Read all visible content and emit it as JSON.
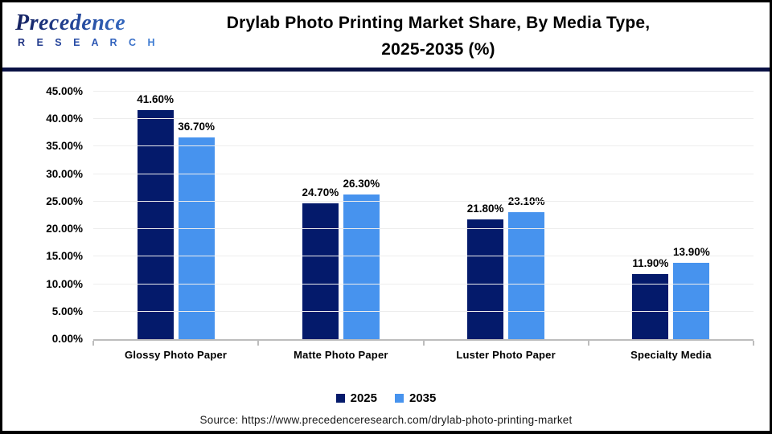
{
  "logo": {
    "name": "Precedence",
    "sub": "R E S E A R C H"
  },
  "title": {
    "line1": "Drylab Photo Printing Market Share, By Media Type,",
    "line2": "2025-2035 (%)"
  },
  "source": "Source: https://www.precedenceresearch.com/drylab-photo-printing-market",
  "colors": {
    "bar_2025": "#041A6B",
    "bar_2035": "#4793EE",
    "header_divider": "#0A1144",
    "gridline": "#EDEDED",
    "axis_line": "#BDBDBD",
    "title_text": "#000000"
  },
  "chart_data": {
    "type": "bar",
    "title": "Drylab Photo Printing Market Share, By Media Type, 2025-2035 (%)",
    "categories": [
      "Glossy Photo Paper",
      "Matte Photo Paper",
      "Luster Photo Paper",
      "Specialty Media"
    ],
    "series": [
      {
        "name": "2025",
        "color": "#041A6B",
        "values": [
          41.6,
          24.7,
          21.8,
          11.9
        ],
        "labels": [
          "41.60%",
          "24.70%",
          "21.80%",
          "11.90%"
        ]
      },
      {
        "name": "2035",
        "color": "#4793EE",
        "values": [
          36.7,
          26.3,
          23.1,
          13.9
        ],
        "labels": [
          "36.70%",
          "26.30%",
          "23.10%",
          "13.90%"
        ]
      }
    ],
    "xlabel": "",
    "ylabel": "",
    "ylim": [
      0,
      45
    ],
    "ytick_step": 5,
    "ytick_suffix": "%",
    "ytick_decimals": 2,
    "grid": true,
    "legend_position": "bottom"
  }
}
